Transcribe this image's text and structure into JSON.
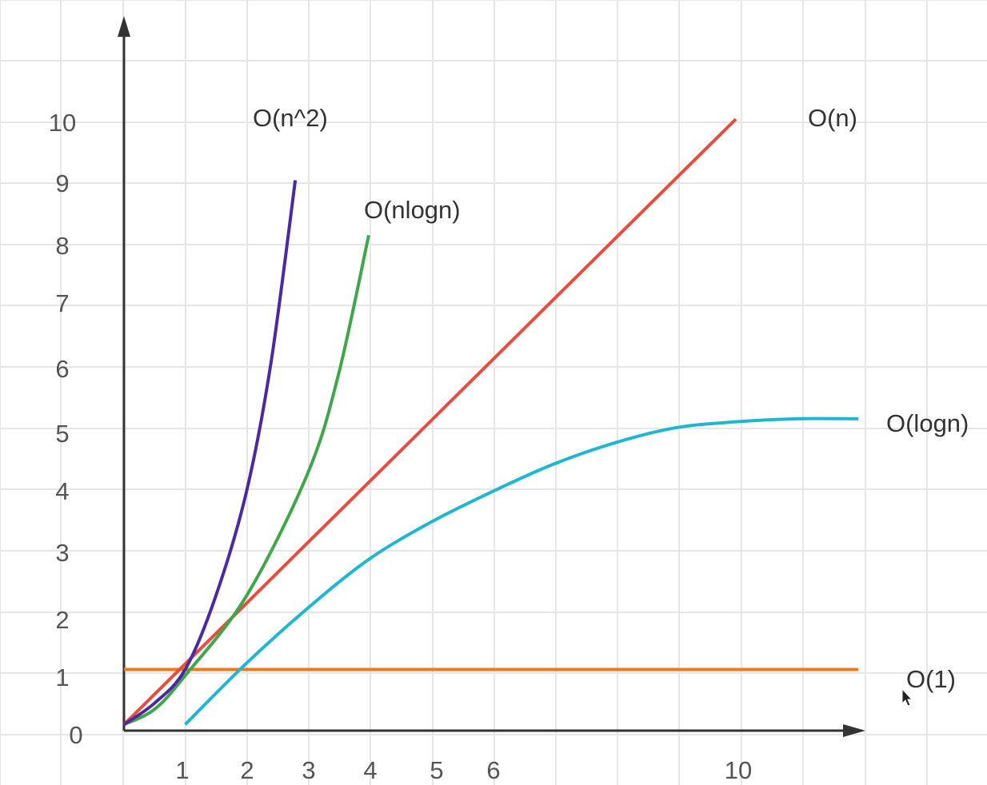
{
  "chart_data": {
    "type": "line",
    "title": "",
    "xlabel": "",
    "ylabel": "",
    "x_tick_labels": [
      "1",
      "2",
      "3",
      "4",
      "5",
      "6",
      "10"
    ],
    "y_tick_labels": [
      "0",
      "1",
      "2",
      "3",
      "4",
      "5",
      "6",
      "7",
      "8",
      "9",
      "10"
    ],
    "grid": true,
    "series": [
      {
        "name": "O(n^2)",
        "color": "#4b2aa1",
        "points": [
          [
            0,
            0.1
          ],
          [
            0.5,
            0.45
          ],
          [
            1,
            1
          ],
          [
            1.5,
            2.2
          ],
          [
            2,
            3.9
          ],
          [
            2.4,
            6.0
          ],
          [
            2.8,
            9.0
          ]
        ]
      },
      {
        "name": "O(nlogn)",
        "color": "#3fa64a",
        "points": [
          [
            0,
            0.1
          ],
          [
            0.5,
            0.35
          ],
          [
            1,
            0.9
          ],
          [
            2,
            2.2
          ],
          [
            3,
            4.2
          ],
          [
            3.5,
            5.8
          ],
          [
            4,
            8.1
          ]
        ]
      },
      {
        "name": "O(n)",
        "color": "#e74c3c",
        "points": [
          [
            0,
            0.1
          ],
          [
            10,
            10
          ]
        ]
      },
      {
        "name": "O(logn)",
        "color": "#1fb6d2",
        "points": [
          [
            1,
            0.1
          ],
          [
            2,
            1.1
          ],
          [
            3,
            2.0
          ],
          [
            4,
            2.8
          ],
          [
            5,
            3.4
          ],
          [
            6,
            3.9
          ],
          [
            7,
            4.35
          ],
          [
            8,
            4.7
          ],
          [
            9,
            4.95
          ],
          [
            10,
            5.05
          ],
          [
            11,
            5.1
          ],
          [
            12,
            5.1
          ]
        ]
      },
      {
        "name": "O(1)",
        "color": "#f07a1a",
        "points": [
          [
            0,
            1
          ],
          [
            12,
            1
          ]
        ]
      }
    ]
  }
}
